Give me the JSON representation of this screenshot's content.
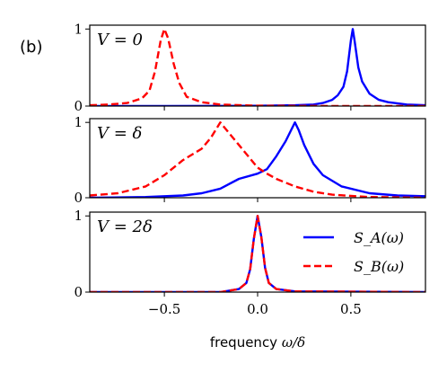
{
  "figure": {
    "panel_label": "(b)"
  },
  "chart_data": [
    {
      "type": "line",
      "annotation": "V = 0",
      "xlabel": "",
      "ylabel": "",
      "xlim": [
        -0.9,
        0.9
      ],
      "ylim": [
        0,
        1.05
      ],
      "yticks": [
        "0",
        "1"
      ],
      "xticks": [],
      "series": [
        {
          "color": "#0000ff",
          "dash": "solid",
          "points": [
            [
              -0.9,
              0.0
            ],
            [
              -0.5,
              0.0
            ],
            [
              0.0,
              0.003
            ],
            [
              0.2,
              0.01
            ],
            [
              0.3,
              0.02
            ],
            [
              0.35,
              0.04
            ],
            [
              0.4,
              0.08
            ],
            [
              0.43,
              0.14
            ],
            [
              0.46,
              0.25
            ],
            [
              0.48,
              0.45
            ],
            [
              0.5,
              0.85
            ],
            [
              0.51,
              1.0
            ],
            [
              0.52,
              0.85
            ],
            [
              0.54,
              0.5
            ],
            [
              0.56,
              0.32
            ],
            [
              0.6,
              0.16
            ],
            [
              0.65,
              0.08
            ],
            [
              0.7,
              0.05
            ],
            [
              0.8,
              0.02
            ],
            [
              0.9,
              0.01
            ]
          ]
        },
        {
          "color": "#ff0000",
          "dash": "dashed",
          "points": [
            [
              -0.9,
              0.01
            ],
            [
              -0.8,
              0.02
            ],
            [
              -0.7,
              0.04
            ],
            [
              -0.62,
              0.1
            ],
            [
              -0.58,
              0.2
            ],
            [
              -0.55,
              0.45
            ],
            [
              -0.52,
              0.85
            ],
            [
              -0.5,
              1.0
            ],
            [
              -0.48,
              0.88
            ],
            [
              -0.45,
              0.55
            ],
            [
              -0.42,
              0.3
            ],
            [
              -0.38,
              0.12
            ],
            [
              -0.3,
              0.05
            ],
            [
              -0.2,
              0.02
            ],
            [
              0.0,
              0.005
            ],
            [
              0.5,
              0.0
            ],
            [
              0.9,
              0.0
            ]
          ]
        }
      ]
    },
    {
      "type": "line",
      "annotation": "V = δ",
      "xlabel": "",
      "ylabel": "",
      "xlim": [
        -0.9,
        0.9
      ],
      "ylim": [
        0,
        1.05
      ],
      "yticks": [
        "0",
        "1"
      ],
      "xticks": [],
      "series": [
        {
          "color": "#0000ff",
          "dash": "solid",
          "points": [
            [
              -0.9,
              0.0
            ],
            [
              -0.6,
              0.01
            ],
            [
              -0.4,
              0.03
            ],
            [
              -0.3,
              0.06
            ],
            [
              -0.2,
              0.12
            ],
            [
              -0.1,
              0.25
            ],
            [
              0.0,
              0.32
            ],
            [
              0.05,
              0.38
            ],
            [
              0.1,
              0.55
            ],
            [
              0.15,
              0.75
            ],
            [
              0.18,
              0.9
            ],
            [
              0.2,
              1.0
            ],
            [
              0.22,
              0.9
            ],
            [
              0.25,
              0.7
            ],
            [
              0.3,
              0.45
            ],
            [
              0.35,
              0.3
            ],
            [
              0.45,
              0.15
            ],
            [
              0.6,
              0.06
            ],
            [
              0.75,
              0.03
            ],
            [
              0.9,
              0.02
            ]
          ]
        },
        {
          "color": "#ff0000",
          "dash": "dashed",
          "points": [
            [
              -0.9,
              0.03
            ],
            [
              -0.75,
              0.06
            ],
            [
              -0.6,
              0.15
            ],
            [
              -0.5,
              0.3
            ],
            [
              -0.4,
              0.5
            ],
            [
              -0.3,
              0.65
            ],
            [
              -0.25,
              0.8
            ],
            [
              -0.2,
              1.0
            ],
            [
              -0.15,
              0.85
            ],
            [
              -0.1,
              0.7
            ],
            [
              -0.05,
              0.55
            ],
            [
              0.0,
              0.4
            ],
            [
              0.05,
              0.32
            ],
            [
              0.1,
              0.25
            ],
            [
              0.2,
              0.15
            ],
            [
              0.3,
              0.08
            ],
            [
              0.4,
              0.04
            ],
            [
              0.6,
              0.01
            ],
            [
              0.9,
              0.0
            ]
          ]
        }
      ]
    },
    {
      "type": "line",
      "annotation": "V = 2δ",
      "xlabel": "frequency ω/δ",
      "ylabel": "",
      "xlim": [
        -0.9,
        0.9
      ],
      "ylim": [
        0,
        1.05
      ],
      "yticks": [
        "0",
        "1"
      ],
      "xticks": [
        "−0.5",
        "0.0",
        "0.5"
      ],
      "xtick_values": [
        -0.5,
        0.0,
        0.5
      ],
      "legend": {
        "position": "right",
        "entries": [
          "S_A(ω)",
          "S_B(ω)"
        ]
      },
      "series": [
        {
          "color": "#0000ff",
          "dash": "solid",
          "points": [
            [
              -0.9,
              0.0
            ],
            [
              -0.2,
              0.0
            ],
            [
              -0.1,
              0.04
            ],
            [
              -0.06,
              0.12
            ],
            [
              -0.04,
              0.3
            ],
            [
              -0.02,
              0.7
            ],
            [
              0.0,
              1.0
            ],
            [
              0.02,
              0.72
            ],
            [
              0.04,
              0.32
            ],
            [
              0.06,
              0.12
            ],
            [
              0.1,
              0.04
            ],
            [
              0.2,
              0.01
            ],
            [
              0.9,
              0.0
            ]
          ]
        },
        {
          "color": "#ff0000",
          "dash": "dashed",
          "points": [
            [
              -0.9,
              0.0
            ],
            [
              -0.2,
              0.0
            ],
            [
              -0.1,
              0.04
            ],
            [
              -0.06,
              0.12
            ],
            [
              -0.04,
              0.3
            ],
            [
              -0.02,
              0.7
            ],
            [
              0.0,
              1.0
            ],
            [
              0.02,
              0.72
            ],
            [
              0.04,
              0.32
            ],
            [
              0.06,
              0.12
            ],
            [
              0.1,
              0.04
            ],
            [
              0.2,
              0.01
            ],
            [
              0.9,
              0.0
            ]
          ]
        }
      ]
    }
  ]
}
